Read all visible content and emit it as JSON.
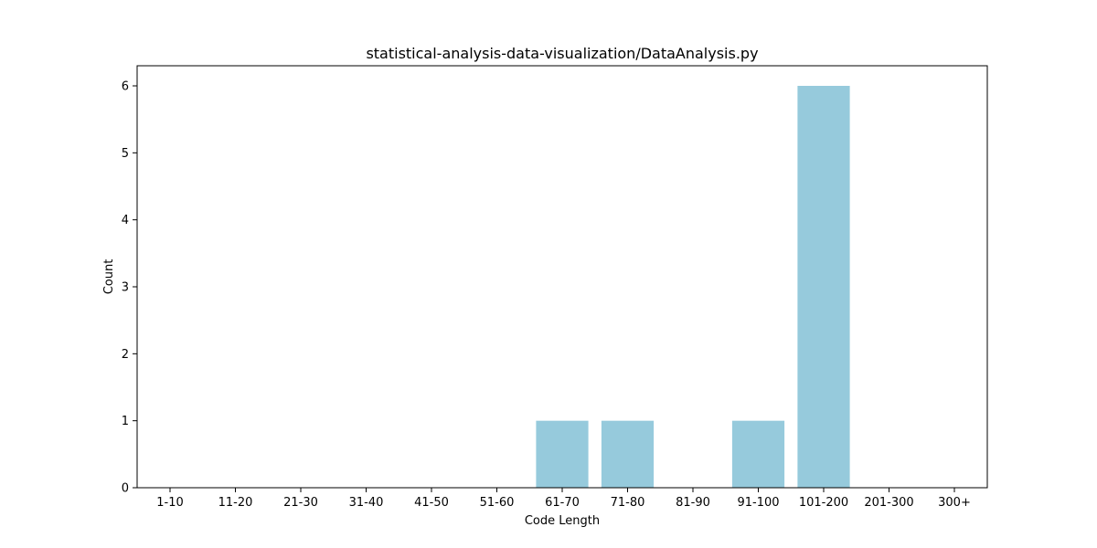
{
  "chart_data": {
    "type": "bar",
    "title": "statistical-analysis-data-visualization/DataAnalysis.py",
    "xlabel": "Code Length",
    "ylabel": "Count",
    "categories": [
      "1-10",
      "11-20",
      "21-30",
      "31-40",
      "41-50",
      "51-60",
      "61-70",
      "71-80",
      "81-90",
      "91-100",
      "101-200",
      "201-300",
      "300+"
    ],
    "values": [
      0,
      0,
      0,
      0,
      0,
      0,
      1,
      1,
      0,
      1,
      6,
      0,
      0
    ],
    "ylim": [
      0,
      6.3
    ],
    "yticks": [
      0,
      1,
      2,
      3,
      4,
      5,
      6
    ],
    "bar_color": "#96cadc",
    "grid": false,
    "legend": "none"
  }
}
